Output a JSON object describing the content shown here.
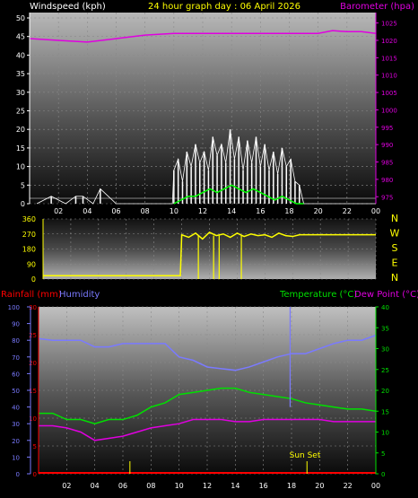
{
  "header": {
    "wind_label": "Windspeed (kph)",
    "title": "24 hour graph day : 06 April 2026",
    "baro_label": "Barometer (hpa)"
  },
  "footer_labels": {
    "rain_label": "Rainfall (mm)",
    "humidity_label": "Humidity",
    "temp_label": "Temperature (°C)",
    "dew_label": "Dew Point (°C)",
    "sunset_label": "Sun Set"
  },
  "colors": {
    "wind": "#ffffff",
    "gust_bars": "#ffffff",
    "avg_wind": "#00ff00",
    "barometer": "#e000e0",
    "direction": "#ffff00",
    "humidity": "#7a7aff",
    "temperature": "#00e000",
    "dewpoint": "#e000e0",
    "rain": "#ff0000",
    "title": "#ffff00",
    "axis_left": "#ffffff",
    "axis_baro": "#e000e0",
    "compass": "#ffff00"
  },
  "chart_data": [
    {
      "type": "line",
      "name": "wind-barometer",
      "xlabel": "",
      "x_ticks": [
        "02",
        "04",
        "06",
        "08",
        "10",
        "12",
        "14",
        "16",
        "18",
        "20",
        "22",
        "00"
      ],
      "y_left_ticks": [
        "0",
        "5",
        "10",
        "15",
        "20",
        "25",
        "30",
        "35",
        "40",
        "45",
        "50"
      ],
      "y_left_range": [
        0,
        50
      ],
      "y_right_ticks": [
        "975",
        "980",
        "985",
        "990",
        "995",
        "1000",
        "1005",
        "1010",
        "1015",
        "1020",
        "1025"
      ],
      "y_right_range": [
        973,
        1028
      ],
      "series": [
        {
          "name": "Windspeed (kph)",
          "x": [
            0.5,
            1.5,
            2.5,
            3.2,
            3.7,
            4.4,
            4.9,
            6,
            8,
            9.9,
            10,
            10.3,
            10.6,
            10.9,
            11.2,
            11.5,
            11.8,
            12.1,
            12.4,
            12.7,
            13,
            13.3,
            13.6,
            13.9,
            14.2,
            14.5,
            14.8,
            15.1,
            15.4,
            15.7,
            16,
            16.3,
            16.6,
            16.9,
            17.2,
            17.5,
            17.8,
            18.1,
            18.4,
            18.7,
            19,
            20,
            22,
            24
          ],
          "values": [
            0,
            2,
            0,
            2,
            2,
            0,
            4,
            0,
            0,
            0,
            9,
            12,
            6,
            14,
            10,
            16,
            11,
            14,
            9,
            18,
            13,
            16,
            11,
            20,
            12,
            18,
            9,
            17,
            11,
            18,
            10,
            16,
            9,
            14,
            8,
            15,
            10,
            12,
            6,
            5,
            0,
            0,
            0,
            0
          ]
        },
        {
          "name": "Average wind",
          "x": [
            10,
            10.5,
            11,
            11.5,
            12,
            12.5,
            13,
            13.5,
            14,
            14.5,
            15,
            15.5,
            16,
            16.5,
            17,
            17.5,
            18,
            18.5,
            19
          ],
          "values": [
            0,
            1,
            2,
            2,
            3,
            4,
            3,
            4,
            5,
            4,
            3,
            4,
            3,
            2,
            1,
            2,
            1,
            0,
            0
          ]
        },
        {
          "name": "Barometer (hpa)",
          "x": [
            0,
            2,
            4,
            6,
            8,
            10,
            12,
            14,
            16,
            18,
            20,
            21,
            22,
            23,
            24
          ],
          "values": [
            1020.5,
            1020,
            1019.5,
            1020.5,
            1021.5,
            1022,
            1022,
            1022,
            1022,
            1022,
            1022,
            1022.8,
            1022.5,
            1022.5,
            1022
          ]
        }
      ]
    },
    {
      "type": "line",
      "name": "wind-direction",
      "x_ticks": [],
      "y_ticks": [
        "0",
        "90",
        "180",
        "270",
        "360"
      ],
      "y_range": [
        0,
        360
      ],
      "compass": [
        "N",
        "W",
        "S",
        "E",
        "N"
      ],
      "series": [
        {
          "name": "Direction",
          "x": [
            0,
            9.9,
            10,
            10.5,
            11,
            11.5,
            12,
            12.5,
            13,
            13.5,
            14,
            14.5,
            15,
            15.5,
            16,
            16.5,
            17,
            17.5,
            18,
            18.5,
            24
          ],
          "values": [
            20,
            20,
            265,
            250,
            275,
            240,
            280,
            260,
            270,
            250,
            275,
            255,
            270,
            260,
            265,
            250,
            275,
            260,
            255,
            265,
            265
          ]
        }
      ]
    },
    {
      "type": "line",
      "name": "temperature-humidity-rain",
      "x_ticks": [
        "02",
        "04",
        "06",
        "08",
        "10",
        "12",
        "14",
        "16",
        "18",
        "20",
        "22",
        "00"
      ],
      "y_hum_ticks": [
        "0",
        "10",
        "20",
        "30",
        "40",
        "50",
        "60",
        "70",
        "80",
        "90",
        "100"
      ],
      "y_hum_range": [
        0,
        100
      ],
      "y_rain_ticks": [
        "0",
        "5",
        "10",
        "15",
        "20",
        "25",
        "30"
      ],
      "y_rain_range": [
        0,
        30
      ],
      "y_temp_ticks": [
        "0",
        "5",
        "10",
        "15",
        "20",
        "25",
        "30",
        "35",
        "40"
      ],
      "y_temp_range": [
        0,
        40
      ],
      "annotations": [
        "Sun Set"
      ],
      "series": [
        {
          "name": "Humidity",
          "x": [
            0,
            1,
            2,
            3,
            4,
            5,
            6,
            7,
            8,
            9,
            10,
            11,
            12,
            13,
            14,
            15,
            16,
            17,
            18,
            19,
            20,
            21,
            22,
            23,
            24
          ],
          "values": [
            81,
            80,
            80,
            80,
            76,
            76,
            78,
            78,
            78,
            78,
            70,
            68,
            64,
            63,
            62,
            64,
            67,
            70,
            72,
            72,
            75,
            78,
            80,
            80,
            83
          ]
        },
        {
          "name": "Temperature (°C)",
          "x": [
            0,
            1,
            2,
            3,
            4,
            5,
            6,
            7,
            8,
            9,
            10,
            11,
            12,
            13,
            14,
            15,
            16,
            17,
            18,
            19,
            20,
            21,
            22,
            23,
            24
          ],
          "values": [
            14.5,
            14.5,
            13,
            13,
            12,
            13,
            13,
            14,
            16,
            17,
            19,
            19.5,
            20,
            20.5,
            20.5,
            19.5,
            19,
            18.5,
            18,
            17,
            16.5,
            16,
            15.5,
            15.5,
            15
          ]
        },
        {
          "name": "Dew Point (°C)",
          "x": [
            0,
            1,
            2,
            3,
            4,
            5,
            6,
            7,
            8,
            9,
            10,
            11,
            12,
            13,
            14,
            15,
            16,
            17,
            18,
            19,
            20,
            21,
            22,
            23,
            24
          ],
          "values": [
            11.5,
            11.5,
            11,
            10,
            8,
            8.5,
            9,
            10,
            11,
            11.5,
            12,
            13,
            13,
            13,
            12.5,
            12.5,
            13,
            13,
            13,
            13,
            13,
            12.5,
            12.5,
            12.5,
            12.5
          ]
        },
        {
          "name": "Rainfall (mm)",
          "x": [
            0,
            24
          ],
          "values": [
            0,
            0
          ]
        }
      ]
    }
  ]
}
